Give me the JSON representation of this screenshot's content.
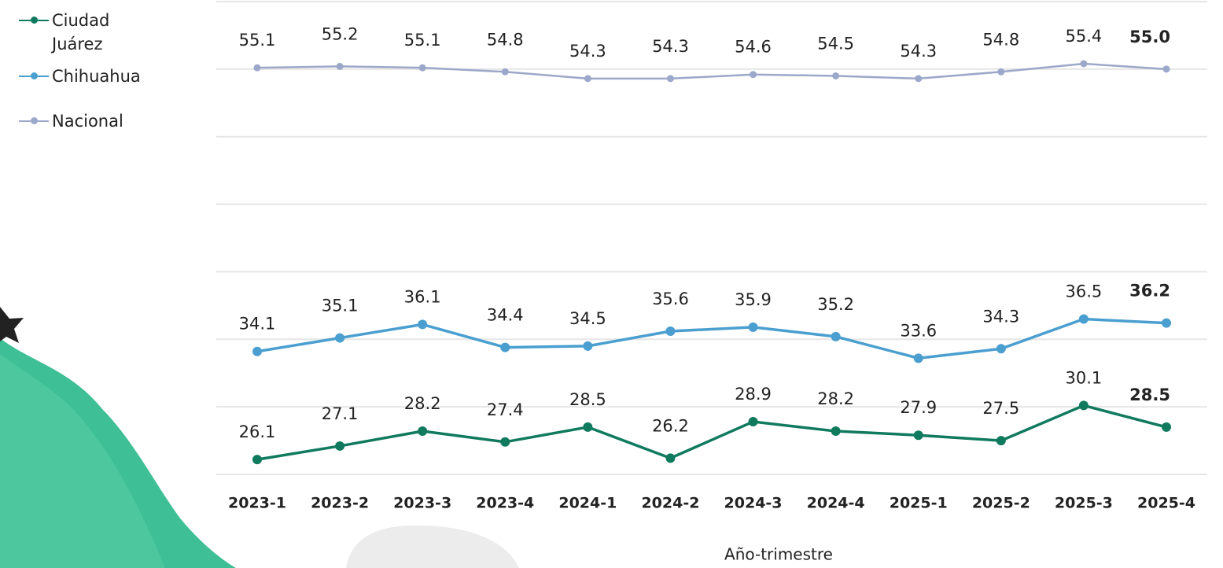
{
  "chart_data": {
    "type": "line",
    "x_label": "Año-trimestre",
    "categories": [
      "2023-1",
      "2023-2",
      "2023-3",
      "2023-4",
      "2024-1",
      "2024-2",
      "2024-3",
      "2024-4",
      "2025-1",
      "2025-2",
      "2025-3",
      "2025-4"
    ],
    "series": [
      {
        "name": "Ciudad Juárez",
        "color": "#107a5e",
        "values": [
          26.1,
          27.1,
          28.2,
          27.4,
          28.5,
          26.2,
          28.9,
          28.2,
          27.9,
          27.5,
          30.1,
          28.5
        ],
        "value_labels": [
          "26.1",
          "27.1",
          "28.2",
          "27.4",
          "28.5",
          "26.2",
          "28.9",
          "28.2",
          "27.9",
          "27.5",
          "30.1",
          "28.5"
        ]
      },
      {
        "name": "Chihuahua",
        "color": "#4a9fd0",
        "values": [
          34.1,
          35.1,
          36.1,
          34.4,
          34.5,
          35.6,
          35.9,
          35.2,
          33.6,
          34.3,
          36.5,
          36.2
        ],
        "value_labels": [
          "34.1",
          "35.1",
          "36.1",
          "34.4",
          "34.5",
          "35.6",
          "35.9",
          "35.2",
          "33.6",
          "34.3",
          "36.5",
          "36.2"
        ]
      },
      {
        "name": "Nacional",
        "color": "#9ba8c9",
        "values": [
          55.1,
          55.2,
          55.1,
          54.8,
          54.3,
          54.3,
          54.6,
          54.5,
          54.3,
          54.8,
          55.4,
          55
        ],
        "value_labels": [
          "55.1",
          "55.2",
          "55.1",
          "54.8",
          "54.3",
          "54.3",
          "54.6",
          "54.5",
          "54.3",
          "54.8",
          "55.4",
          "55.0"
        ]
      }
    ],
    "ylim": [
      25,
      60
    ],
    "yticks": [
      25,
      30,
      35,
      40,
      45,
      50,
      55,
      60
    ],
    "grid": true
  }
}
